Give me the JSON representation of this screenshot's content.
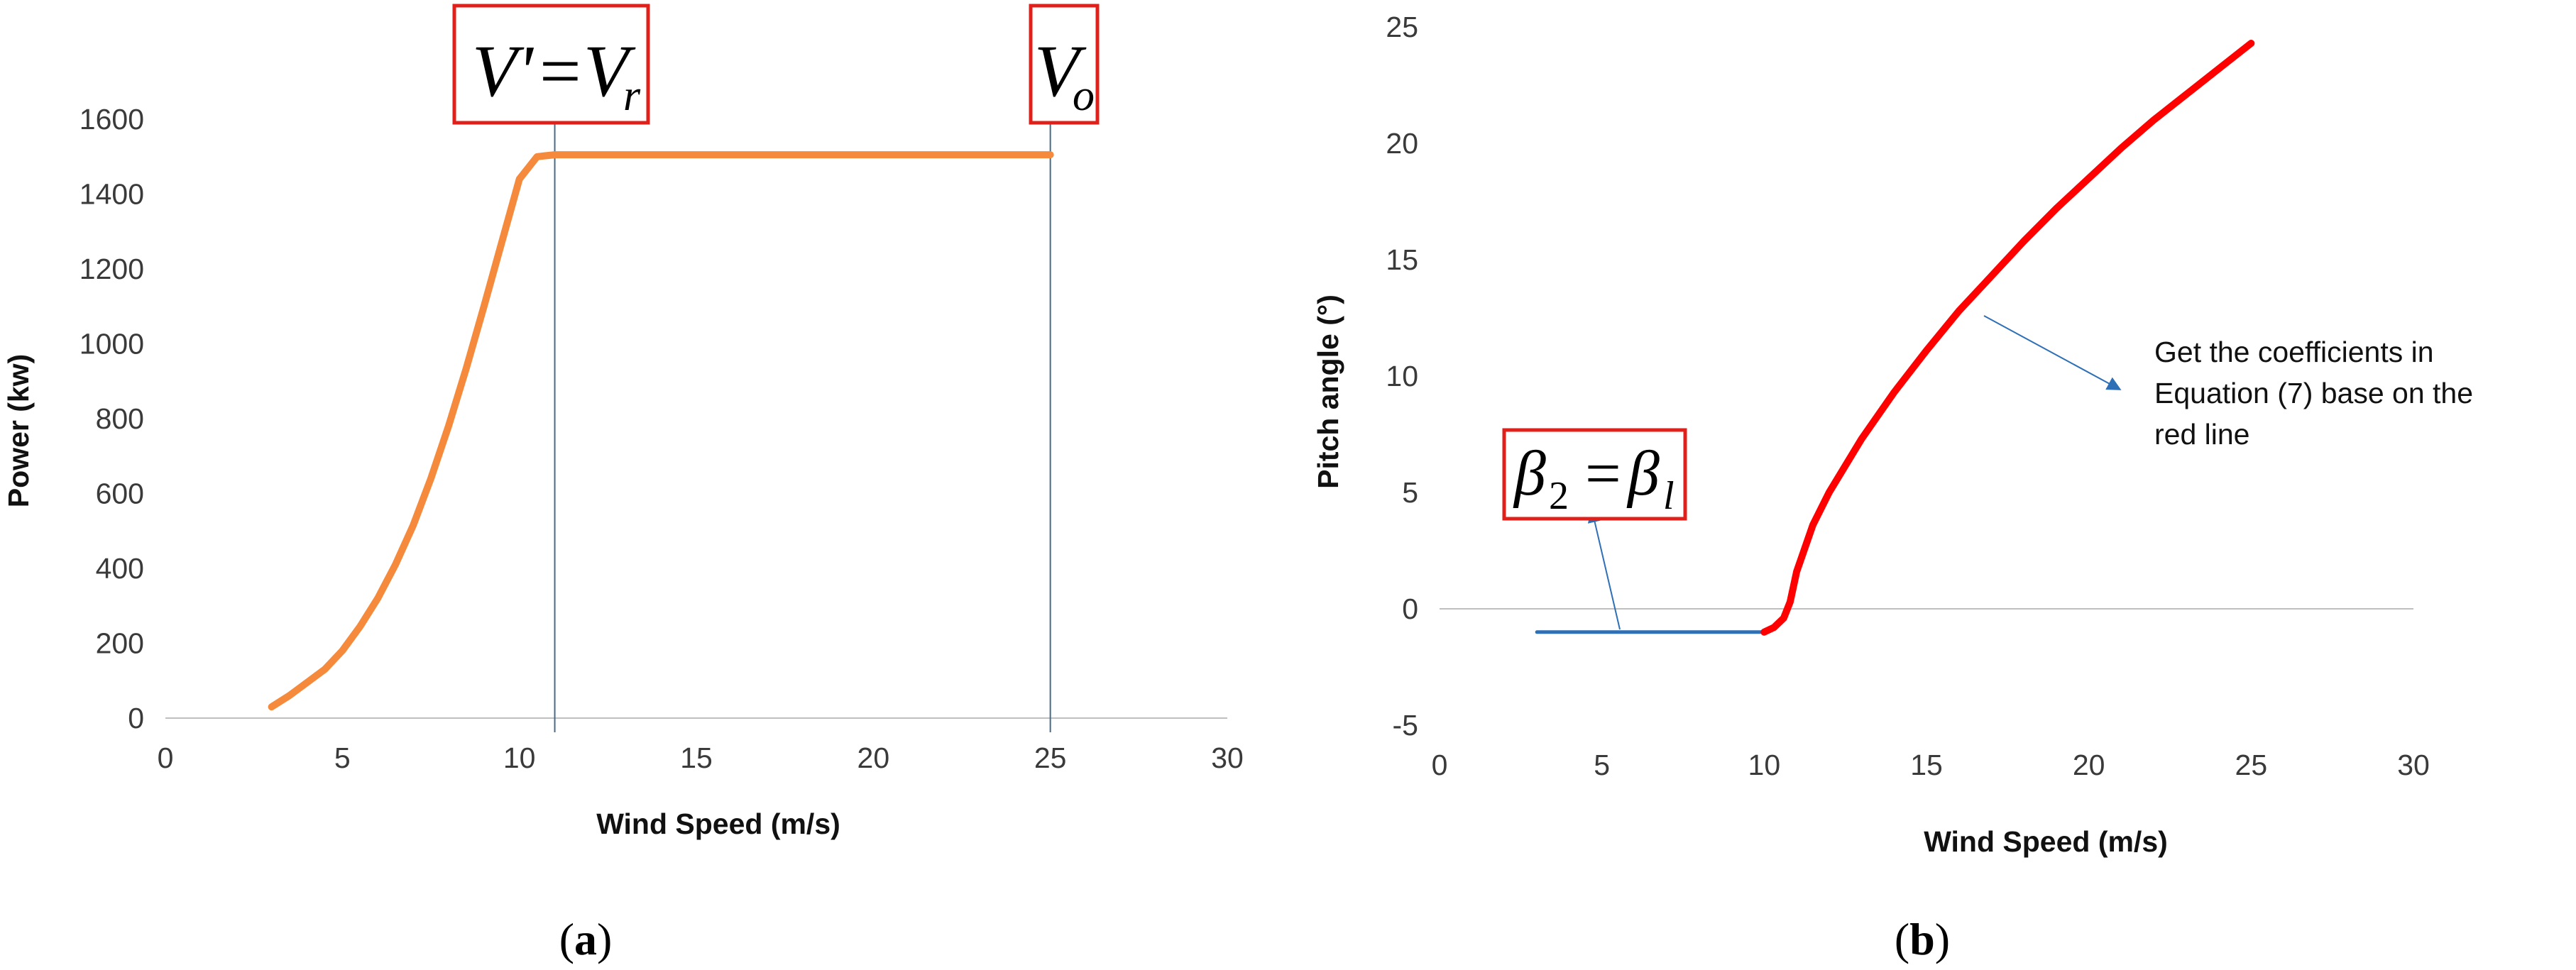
{
  "chart_data": [
    {
      "type": "line",
      "panel": "a",
      "caption": "(a)",
      "xlabel": "Wind Speed (m/s)",
      "ylabel": "Power (kw)",
      "xlim": [
        0,
        30
      ],
      "ylim": [
        0,
        1600
      ],
      "xticks": [
        0,
        5,
        10,
        15,
        20,
        25,
        30
      ],
      "yticks": [
        0,
        200,
        400,
        600,
        800,
        1000,
        1200,
        1400,
        1600
      ],
      "grid": false,
      "series": [
        {
          "color": "#f58a3c",
          "x": [
            3,
            3.5,
            4,
            4.5,
            5,
            5.5,
            6,
            6.5,
            7,
            7.5,
            8,
            8.5,
            9,
            9.5,
            10,
            10.5,
            11,
            12,
            15,
            20,
            25
          ],
          "y": [
            30,
            60,
            95,
            130,
            180,
            245,
            320,
            410,
            515,
            640,
            780,
            935,
            1100,
            1270,
            1440,
            1500,
            1505,
            1505,
            1505,
            1505,
            1505
          ]
        }
      ],
      "vlines": [
        11,
        25
      ],
      "annotations": [
        {
          "text": "V' = V_r",
          "x": 11
        },
        {
          "text": "V_o",
          "x": 25
        }
      ]
    },
    {
      "type": "line",
      "panel": "b",
      "caption": "(b)",
      "xlabel": "Wind Speed (m/s)",
      "ylabel": "Pitch angle (°)",
      "xlim": [
        0,
        30
      ],
      "ylim": [
        -5,
        25
      ],
      "xticks": [
        0,
        5,
        10,
        15,
        20,
        25,
        30
      ],
      "yticks": [
        -5,
        0,
        5,
        10,
        15,
        20,
        25
      ],
      "grid": false,
      "series": [
        {
          "color": "#2e6fb6",
          "x": [
            3,
            10
          ],
          "y": [
            -1,
            -1
          ]
        },
        {
          "color": "#ff0000",
          "x": [
            10,
            10.3,
            10.6,
            10.8,
            11,
            11.5,
            12,
            13,
            14,
            15,
            16,
            17,
            18,
            19,
            20,
            21,
            22,
            23,
            24,
            25
          ],
          "y": [
            -1,
            -0.8,
            -0.4,
            0.3,
            1.6,
            3.6,
            5,
            7.3,
            9.3,
            11.1,
            12.8,
            14.3,
            15.8,
            17.2,
            18.5,
            19.8,
            21,
            22.1,
            23.2,
            24.3
          ]
        }
      ],
      "annotations": [
        {
          "text": "Get the coefficients in Equation (7) base on the red line",
          "lines": [
            "Get the coefficients in",
            "Equation (7) base on the",
            "red line"
          ]
        },
        {
          "text": "β_2 = β_l"
        }
      ]
    }
  ]
}
